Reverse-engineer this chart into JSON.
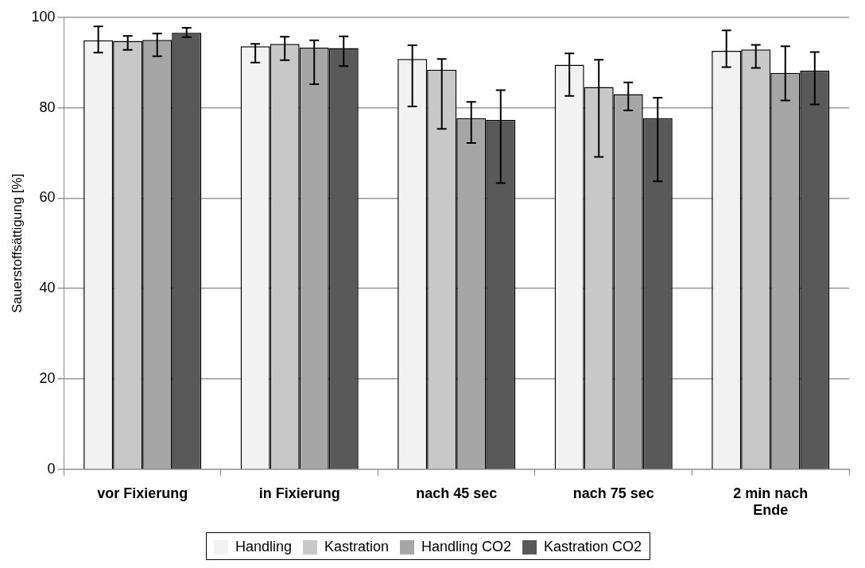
{
  "chart_data": {
    "type": "bar",
    "ylabel": "Sauerstoffsättigung [%]",
    "categories": [
      "vor Fixierung",
      "in Fixierung",
      "nach 45 sec",
      "nach 75 sec",
      "2 min nach Ende"
    ],
    "series": [
      {
        "name": "Handling",
        "color": "#f2f2f2",
        "values": [
          94.9,
          93.6,
          90.8,
          89.5,
          92.6
        ],
        "errors": [
          [
            92.2,
            98.0
          ],
          [
            90.0,
            94.1
          ],
          [
            80.3,
            93.8
          ],
          [
            82.6,
            92.0
          ],
          [
            89.0,
            97.1
          ]
        ]
      },
      {
        "name": "Kastration",
        "color": "#c8c8c8",
        "values": [
          94.8,
          94.1,
          88.4,
          84.6,
          92.9
        ],
        "errors": [
          [
            92.8,
            95.9
          ],
          [
            90.5,
            95.7
          ],
          [
            75.3,
            90.8
          ],
          [
            69.1,
            90.6
          ],
          [
            88.8,
            93.9
          ]
        ]
      },
      {
        "name": "Handling CO2",
        "color": "#a6a6a6",
        "values": [
          95.0,
          93.3,
          77.7,
          83.0,
          87.7
        ],
        "errors": [
          [
            91.4,
            96.4
          ],
          [
            85.2,
            94.9
          ],
          [
            72.2,
            81.3
          ],
          [
            79.4,
            85.6
          ],
          [
            81.6,
            93.6
          ]
        ]
      },
      {
        "name": "Kastration CO2",
        "color": "#595959",
        "values": [
          96.6,
          93.2,
          77.3,
          77.7,
          88.2
        ],
        "errors": [
          [
            95.6,
            97.7
          ],
          [
            89.2,
            95.8
          ],
          [
            63.3,
            83.9
          ],
          [
            63.7,
            82.2
          ],
          [
            80.7,
            92.3
          ]
        ]
      }
    ],
    "ylim": [
      0,
      100
    ],
    "yticks": [
      0,
      20,
      40,
      60,
      80,
      100
    ],
    "grid": "y",
    "legend": "bottom"
  }
}
